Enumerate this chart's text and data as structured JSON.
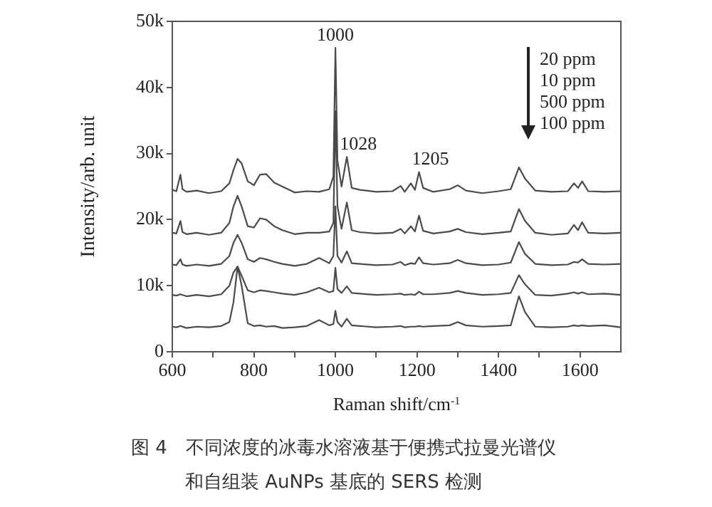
{
  "chart_data": {
    "type": "line",
    "xlabel": "Raman shift/cm$^{-1}$",
    "ylabel": "Intensity/arb. unit",
    "x": [
      600,
      610,
      620,
      625,
      635,
      660,
      690,
      720,
      740,
      750,
      760,
      770,
      785,
      800,
      815,
      830,
      850,
      870,
      900,
      930,
      960,
      985,
      995,
      1000,
      1005,
      1015,
      1028,
      1040,
      1060,
      1100,
      1140,
      1160,
      1170,
      1185,
      1195,
      1205,
      1215,
      1240,
      1280,
      1300,
      1320,
      1360,
      1400,
      1430,
      1450,
      1465,
      1490,
      1530,
      1570,
      1585,
      1595,
      1605,
      1620,
      1660,
      1700
    ],
    "series": [
      {
        "color": "#4a4a4a",
        "values": [
          24500,
          24300,
          26800,
          24600,
          24200,
          24400,
          24000,
          24300,
          25500,
          27500,
          29200,
          28500,
          25800,
          25200,
          26800,
          26900,
          25600,
          25000,
          24100,
          24300,
          24200,
          24600,
          26500,
          46000,
          29000,
          25000,
          29500,
          24800,
          24500,
          24200,
          24300,
          25100,
          24200,
          25500,
          24500,
          27200,
          24800,
          24200,
          24600,
          25200,
          24400,
          24000,
          24300,
          24600,
          27900,
          26200,
          24400,
          24200,
          24300,
          25500,
          24800,
          25800,
          24300,
          24200,
          24300
        ]
      },
      {
        "color": "#4a4a4a",
        "values": [
          18000,
          17900,
          19800,
          18100,
          17800,
          18000,
          17700,
          18000,
          19500,
          22000,
          23600,
          22000,
          19000,
          18800,
          20200,
          20000,
          19000,
          18400,
          17800,
          18000,
          18000,
          18200,
          19500,
          36400,
          22000,
          18600,
          22600,
          18400,
          18100,
          17900,
          18000,
          18600,
          17900,
          19000,
          18200,
          20600,
          18300,
          17900,
          18200,
          18600,
          18100,
          17800,
          18000,
          18200,
          21600,
          19800,
          18000,
          17700,
          17900,
          19200,
          18400,
          19600,
          18000,
          17900,
          18000
        ]
      },
      {
        "color": "#4a4a4a",
        "values": [
          13200,
          13100,
          14000,
          13200,
          13000,
          13200,
          13000,
          13300,
          14500,
          16500,
          17700,
          16500,
          14000,
          13600,
          14200,
          14000,
          13600,
          13300,
          13000,
          13300,
          14200,
          13400,
          14500,
          22000,
          14500,
          13500,
          15200,
          13400,
          13300,
          13100,
          13200,
          13600,
          13100,
          13400,
          13300,
          14300,
          13400,
          13200,
          13400,
          13900,
          13400,
          13100,
          13200,
          13500,
          16600,
          14800,
          13300,
          13100,
          13200,
          13600,
          13500,
          14000,
          13300,
          13200,
          13300
        ]
      },
      {
        "color": "#4a4a4a",
        "values": [
          8600,
          8500,
          8700,
          8600,
          8400,
          8600,
          8400,
          8700,
          10000,
          12000,
          12900,
          11500,
          9300,
          9000,
          9300,
          9200,
          9000,
          8800,
          8600,
          9000,
          9700,
          9000,
          9200,
          12700,
          9500,
          8900,
          9900,
          8900,
          8800,
          8600,
          8700,
          8800,
          8600,
          8700,
          8600,
          9100,
          8700,
          8700,
          8900,
          9200,
          8900,
          8600,
          8700,
          8900,
          11600,
          10200,
          8600,
          8500,
          8800,
          9000,
          8800,
          9000,
          8700,
          8800,
          8600
        ]
      },
      {
        "color": "#4a4a4a",
        "values": [
          3800,
          3700,
          3900,
          3800,
          3600,
          3800,
          3700,
          3900,
          4500,
          7500,
          12900,
          10000,
          4300,
          3900,
          4000,
          3800,
          3900,
          3600,
          3700,
          3900,
          4800,
          4000,
          4200,
          6200,
          4500,
          3800,
          5000,
          4000,
          3900,
          3700,
          3800,
          3900,
          3700,
          3800,
          3800,
          3900,
          3800,
          3900,
          4000,
          4500,
          4000,
          3800,
          3900,
          4000,
          8400,
          6000,
          3800,
          3700,
          3800,
          4000,
          3900,
          4000,
          3900,
          4000,
          3700
        ]
      }
    ],
    "xlim": [
      600,
      1700
    ],
    "xticks": [
      600,
      {
        "value": 700,
        "label": null
      },
      800,
      {
        "value": 900,
        "label": null
      },
      1000,
      {
        "value": 1100,
        "label": null
      },
      1200,
      {
        "value": 1300,
        "label": null
      },
      1400,
      {
        "value": 1500,
        "label": null
      },
      1600
    ],
    "ylim": [
      0,
      50000
    ],
    "yticks": [
      0,
      {
        "value": 10000,
        "label": "10k"
      },
      {
        "value": 20000,
        "label": "20k"
      },
      {
        "value": 30000,
        "label": "30k"
      },
      {
        "value": 40000,
        "label": "40k"
      },
      {
        "value": 50000,
        "label": "50k"
      }
    ],
    "grid": false,
    "legend": false,
    "marker": "none",
    "line_style": "solid",
    "annotations": [
      {
        "text": "1000",
        "x": 1000,
        "y": 46000
      },
      {
        "text": "1028",
        "x": 1028,
        "y": 29500
      },
      {
        "text": "1205",
        "x": 1205,
        "y": 27200
      },
      "20 ppm",
      "10 ppm",
      "500 ppm",
      "100 ppm",
      "图 4　不同浓度的冰毒水溶液基于便携式拉曼光谱仪",
      "和自组装 AuNPs 基底的 SERS 检测"
    ]
  }
}
